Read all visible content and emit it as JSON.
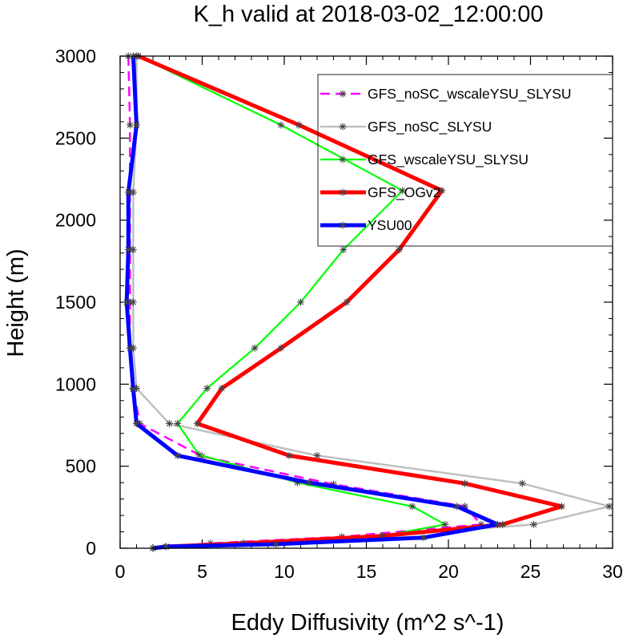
{
  "chart_data": {
    "type": "line",
    "title": "K_h valid at 2018-03-02_12:00:00",
    "xlabel": "Eddy Diffusivity (m^2 s^-1)",
    "ylabel": "Height (m)",
    "xlim": [
      0,
      30
    ],
    "ylim": [
      0,
      3000
    ],
    "xticks": [
      "0",
      "5",
      "10",
      "15",
      "20",
      "25",
      "30"
    ],
    "yticks": [
      "0",
      "500",
      "1000",
      "1500",
      "2000",
      "2500",
      "3000"
    ],
    "legend_position": "top-right",
    "grid": false,
    "series": [
      {
        "name": "GFS_noSC_wscaleYSU_SLYSU",
        "color": "#ff00ff",
        "style": "dashed",
        "marker": "asterisk",
        "points": [
          [
            2.0,
            0
          ],
          [
            2.8,
            10
          ],
          [
            5.5,
            30
          ],
          [
            13.5,
            70
          ],
          [
            22.0,
            145
          ],
          [
            21.0,
            255
          ],
          [
            13.0,
            390
          ],
          [
            5.0,
            560
          ],
          [
            1.2,
            760
          ],
          [
            0.8,
            975
          ],
          [
            0.6,
            1220
          ],
          [
            0.6,
            1500
          ],
          [
            0.6,
            1820
          ],
          [
            0.6,
            2170
          ],
          [
            0.6,
            2580
          ],
          [
            0.5,
            3000
          ]
        ]
      },
      {
        "name": "GFS_noSC_SLYSU",
        "color": "#bfbfbf",
        "style": "solid",
        "marker": "asterisk",
        "points": [
          [
            2.0,
            0
          ],
          [
            2.8,
            10
          ],
          [
            7.5,
            30
          ],
          [
            16.0,
            75
          ],
          [
            25.2,
            145
          ],
          [
            29.8,
            255
          ],
          [
            24.5,
            395
          ],
          [
            12.0,
            565
          ],
          [
            3.0,
            760
          ],
          [
            1.0,
            975
          ],
          [
            0.8,
            1220
          ],
          [
            0.8,
            1500
          ],
          [
            0.8,
            1820
          ],
          [
            0.8,
            2170
          ],
          [
            1.0,
            2580
          ],
          [
            1.0,
            3000
          ]
        ]
      },
      {
        "name": "GFS_wscaleYSU_SLYSU",
        "color": "#00ff00",
        "style": "solid",
        "marker": "asterisk",
        "points": [
          [
            2.0,
            0
          ],
          [
            2.8,
            10
          ],
          [
            9.0,
            30
          ],
          [
            16.0,
            75
          ],
          [
            19.8,
            145
          ],
          [
            17.8,
            255
          ],
          [
            10.8,
            400
          ],
          [
            4.8,
            570
          ],
          [
            3.5,
            760
          ],
          [
            5.3,
            975
          ],
          [
            8.2,
            1220
          ],
          [
            11.0,
            1500
          ],
          [
            13.6,
            1820
          ],
          [
            17.2,
            2180
          ],
          [
            9.8,
            2580
          ],
          [
            1.1,
            3000
          ]
        ]
      },
      {
        "name": "GFS_OGv2",
        "color": "#ff0000",
        "style": "solid",
        "marker": "asterisk",
        "points": [
          [
            2.0,
            0
          ],
          [
            2.8,
            10
          ],
          [
            7.5,
            30
          ],
          [
            16.0,
            75
          ],
          [
            23.3,
            145
          ],
          [
            26.9,
            255
          ],
          [
            21.0,
            395
          ],
          [
            10.3,
            565
          ],
          [
            4.7,
            760
          ],
          [
            6.2,
            975
          ],
          [
            9.8,
            1220
          ],
          [
            13.8,
            1500
          ],
          [
            17.0,
            1820
          ],
          [
            19.6,
            2180
          ],
          [
            10.9,
            2580
          ],
          [
            1.1,
            3000
          ]
        ]
      },
      {
        "name": "YSU00",
        "color": "#0000ff",
        "style": "solid",
        "marker": "asterisk",
        "points": [
          [
            2.0,
            0
          ],
          [
            2.8,
            10
          ],
          [
            9.5,
            25
          ],
          [
            18.5,
            65
          ],
          [
            23.0,
            145
          ],
          [
            20.5,
            255
          ],
          [
            11.5,
            400
          ],
          [
            3.5,
            565
          ],
          [
            1.0,
            760
          ],
          [
            0.8,
            970
          ],
          [
            0.6,
            1220
          ],
          [
            0.4,
            1500
          ],
          [
            0.5,
            1820
          ],
          [
            0.5,
            2170
          ],
          [
            1.0,
            2580
          ],
          [
            0.8,
            3000
          ]
        ]
      }
    ]
  }
}
